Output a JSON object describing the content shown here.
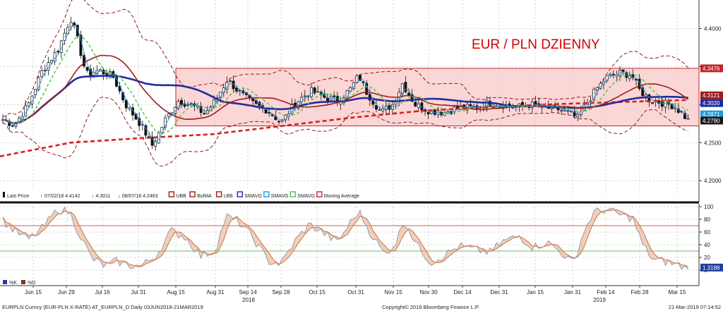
{
  "chart_data": [
    {
      "type": "candlestick",
      "title": "EUR / PLN DZIENNY",
      "x_labels": [
        "Jun 15",
        "Jun 29",
        "Jul 16",
        "Jul 31",
        "Aug 15",
        "Aug 31",
        "Sep 14",
        "Sep 28",
        "Oct 15",
        "Oct 31",
        "Nov 15",
        "Nov 30",
        "Dec 14",
        "Dec 31",
        "Jan 15",
        "Jan 31",
        "Feb 14",
        "Feb 28",
        "Mar 15"
      ],
      "year_labels": [
        "2018",
        "2019"
      ],
      "y_ticks": [
        "4.4000",
        "4.3500",
        "4.3000",
        "4.2500",
        "4.2000"
      ],
      "ylim": [
        4.19,
        4.43
      ],
      "value_tags": [
        {
          "value": "4.3476",
          "color": "#c0262d"
        },
        {
          "value": "4.3121",
          "color": "#a01c1c"
        },
        {
          "value": "4.3020",
          "color": "#1f2da0"
        },
        {
          "value": "4.2871",
          "color": "#1f9ae0"
        },
        {
          "value": "4.2790",
          "color": "#1a1a1a"
        }
      ],
      "range_band": {
        "low": 4.272,
        "high": 4.3476,
        "x_from": "Aug 15"
      },
      "legend": [
        {
          "label": "Last Price",
          "icon": "candle-icon"
        },
        {
          "label": "07/02/18 4.4142",
          "icon": "up-arrow-icon"
        },
        {
          "label": "4.3011",
          "icon": "down-arrow-icon"
        },
        {
          "label": "08/07/18 4.2463",
          "icon": "down-arrow-icon"
        },
        {
          "label": "UBB",
          "color": "#a01c1c"
        },
        {
          "label": "BolMA",
          "color": "#a01c1c"
        },
        {
          "label": "LBB",
          "color": "#a01c1c"
        },
        {
          "label": "SMAVG",
          "color": "#1f2da0"
        },
        {
          "label": "SMAVG",
          "color": "#1f9ae0"
        },
        {
          "label": "SMAVG",
          "color": "#4cc94c"
        },
        {
          "label": "Moving Average",
          "color": "#c0262d"
        }
      ]
    },
    {
      "type": "line",
      "name": "stochastic",
      "y_ticks": [
        "100",
        "80",
        "60",
        "40",
        "20",
        "0"
      ],
      "ylim": [
        0,
        100
      ],
      "value_tag": {
        "value": "1.3188",
        "color": "#1f3f9e"
      },
      "legend": [
        {
          "label": "%K",
          "color": "#1f3f9e"
        },
        {
          "label": "%D",
          "color": "#7a3a1a"
        }
      ]
    }
  ],
  "footer": {
    "left": "EURPLN Curncy (EUR-PLN X-RATE) AT_EURPLN_D  Daily 03JUN2018-21MAR2019",
    "center": "Copyright© 2019 Bloomberg Finance L.P.",
    "right": "21-Mar-2019 07:14:52"
  }
}
